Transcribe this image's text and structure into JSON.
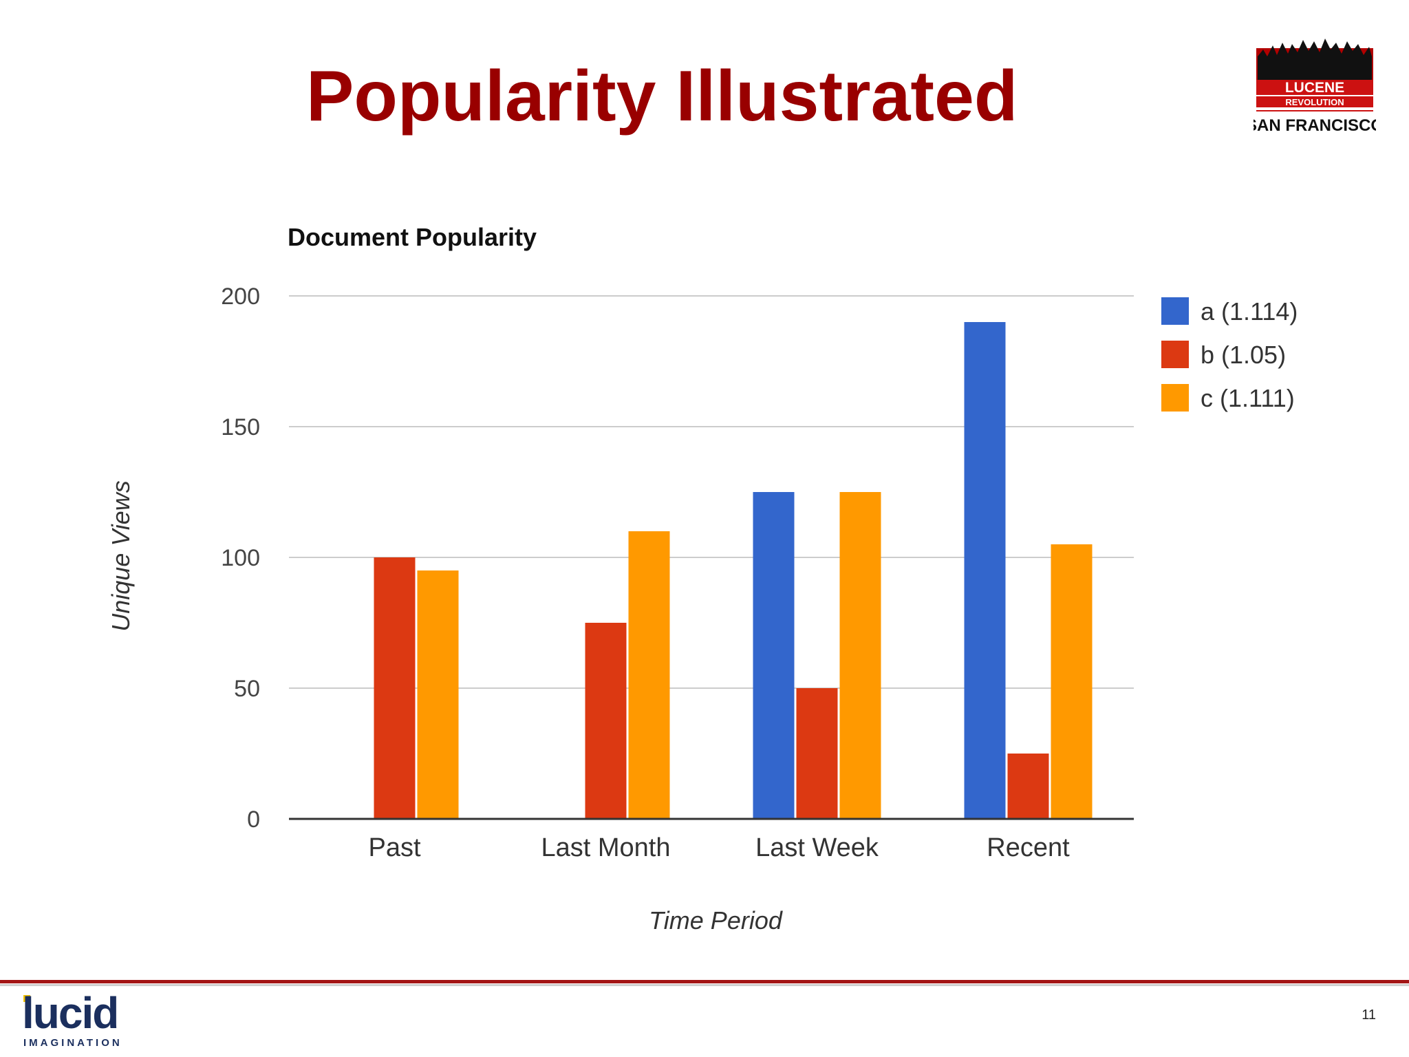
{
  "slide": {
    "title": "Popularity Illustrated",
    "page_number": "11"
  },
  "logos": {
    "event": {
      "line1": "LUCENE",
      "line2": "REVOLUTION",
      "line3": "SAN FRANCISCO"
    },
    "company": {
      "name": "lucid",
      "tagline": "IMAGINATION"
    }
  },
  "colors": {
    "title": "#990000",
    "series_a": "#3366cc",
    "series_b": "#dc3912",
    "series_c": "#ff9900"
  },
  "chart_data": {
    "type": "bar",
    "title": "Document Popularity",
    "xlabel": "Time Period",
    "ylabel": "Unique Views",
    "categories": [
      "Past",
      "Last Month",
      "Last Week",
      "Recent"
    ],
    "series": [
      {
        "name": "a (1.114)",
        "color": "#3366cc",
        "values": [
          0,
          0,
          125,
          190
        ]
      },
      {
        "name": "b (1.05)",
        "color": "#dc3912",
        "values": [
          100,
          75,
          50,
          25
        ]
      },
      {
        "name": "c (1.111)",
        "color": "#ff9900",
        "values": [
          95,
          110,
          125,
          105
        ]
      }
    ],
    "ylim": [
      0,
      200
    ],
    "yticks": [
      0,
      50,
      100,
      150,
      200
    ],
    "grid": true,
    "legend": "right"
  }
}
